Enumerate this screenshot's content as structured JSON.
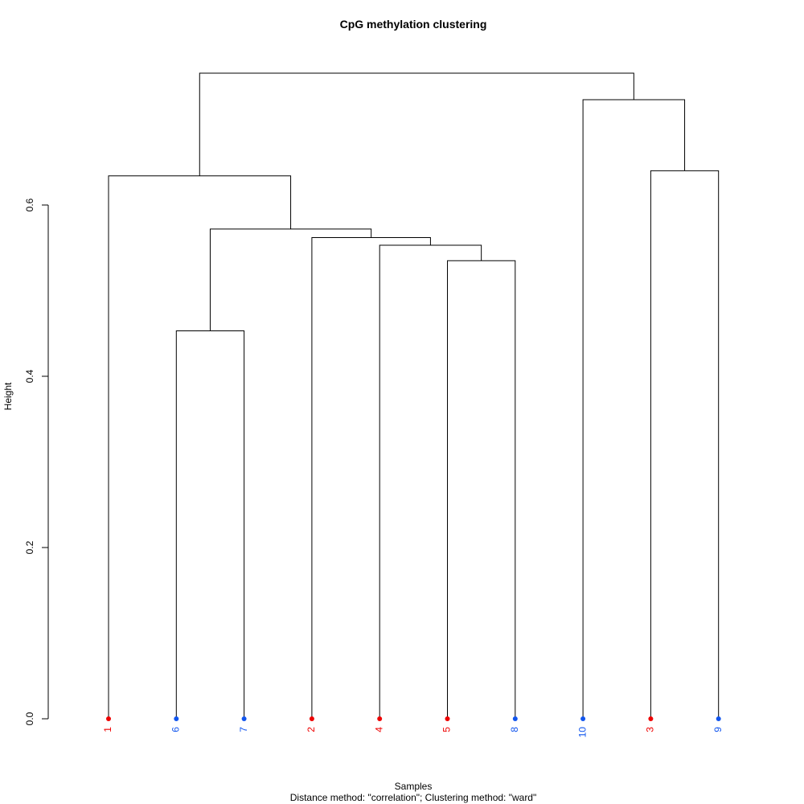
{
  "chart_data": {
    "type": "dendrogram",
    "title": "CpG methylation clustering",
    "ylabel": "Height",
    "xlabel": "Samples",
    "subtitle": "Distance method: \"correlation\"; Clustering method: \"ward\"",
    "ylim": [
      0,
      0.6
    ],
    "yticks": [
      0.0,
      0.2,
      0.4,
      0.6
    ],
    "ytick_labels": [
      "0.0",
      "0.2",
      "0.4",
      "0.6"
    ],
    "leaf_order": [
      "1",
      "6",
      "7",
      "2",
      "4",
      "5",
      "8",
      "10",
      "3",
      "9"
    ],
    "leaf_colors": {
      "1": "#ee0000",
      "6": "#1155ee",
      "7": "#1155ee",
      "2": "#ee0000",
      "4": "#ee0000",
      "5": "#ee0000",
      "8": "#1155ee",
      "10": "#1155ee",
      "3": "#ee0000",
      "9": "#1155ee"
    },
    "merges": [
      {
        "id": "m1",
        "left": "6",
        "right": "7",
        "height": 0.453
      },
      {
        "id": "m2",
        "left": "5",
        "right": "8",
        "height": 0.535
      },
      {
        "id": "m3",
        "left": "4",
        "right": "m2",
        "height": 0.553
      },
      {
        "id": "m4",
        "left": "2",
        "right": "m3",
        "height": 0.562
      },
      {
        "id": "m5",
        "left": "m1",
        "right": "m4",
        "height": 0.572
      },
      {
        "id": "m6",
        "left": "1",
        "right": "m5",
        "height": 0.634
      },
      {
        "id": "m7",
        "left": "3",
        "right": "9",
        "height": 0.64
      },
      {
        "id": "m8",
        "left": "10",
        "right": "m7",
        "height": 0.723
      },
      {
        "id": "m9",
        "left": "m6",
        "right": "m8",
        "height": 0.754
      }
    ]
  }
}
